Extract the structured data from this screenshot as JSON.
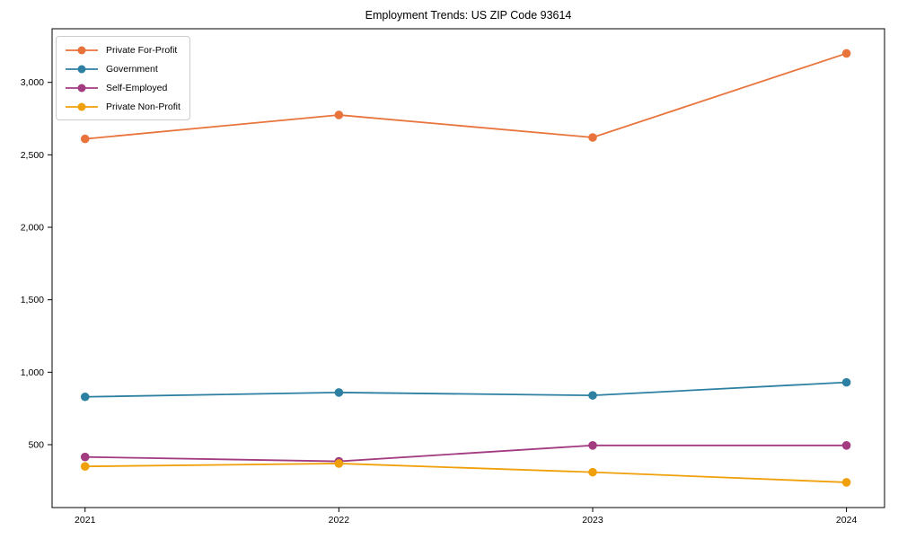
{
  "title": "Employment Trends: US ZIP Code 93614",
  "chart_data": {
    "type": "line",
    "title": "Employment Trends: US ZIP Code 93614",
    "xlabel": "",
    "ylabel": "",
    "x": [
      2021,
      2022,
      2023,
      2024
    ],
    "x_tick_labels": [
      "2021",
      "2022",
      "2023",
      "2024"
    ],
    "y_ticks": [
      500,
      1000,
      1500,
      2000,
      2500,
      3000
    ],
    "y_tick_labels": [
      "500",
      "1,000",
      "1,500",
      "2,000",
      "2,500",
      "3,000"
    ],
    "xlim": [
      2020.87,
      2024.15
    ],
    "ylim": [
      66,
      3370
    ],
    "grid": false,
    "legend_position": "upper left",
    "series": [
      {
        "name": "Private For-Profit",
        "color": "#e8743c",
        "values": [
          2610,
          2775,
          2620,
          3200
        ]
      },
      {
        "name": "Government",
        "color": "#2e80a2",
        "values": [
          830,
          860,
          840,
          930
        ]
      },
      {
        "name": "Self-Employed",
        "color": "#a23b80",
        "values": [
          415,
          385,
          495,
          495
        ]
      },
      {
        "name": "Private Non-Profit",
        "color": "#f0a00a",
        "values": [
          350,
          370,
          310,
          240
        ]
      }
    ]
  },
  "colors": {
    "axis": "#000000",
    "text": "#000000",
    "background": "#ffffff",
    "legend_border": "#cccccc"
  }
}
